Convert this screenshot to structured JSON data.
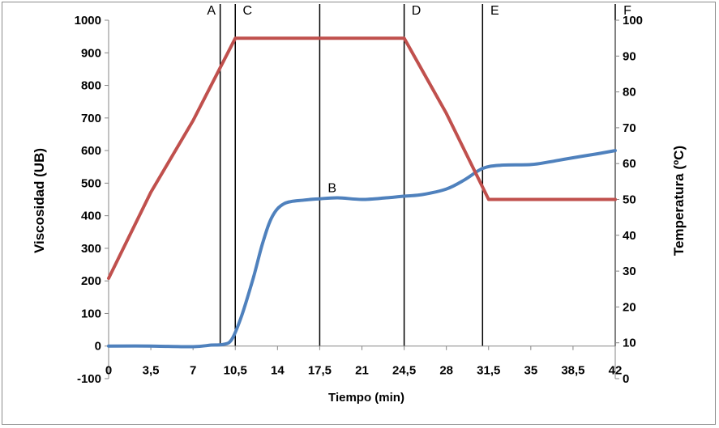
{
  "chart_data": {
    "type": "line",
    "title": "",
    "xlabel": "Tiempo (min)",
    "ylabel": "Viscosidad (UB)",
    "y2label": "Temperatura (ºC)",
    "xlim": [
      0,
      42
    ],
    "ylim": [
      -100,
      1000
    ],
    "y2lim": [
      0,
      100
    ],
    "x_ticks": [
      "0",
      "3,5",
      "7",
      "10,5",
      "14",
      "17,5",
      "21",
      "24,5",
      "28",
      "31,5",
      "35",
      "38,5",
      "42"
    ],
    "y_ticks": [
      "-100",
      "0",
      "100",
      "200",
      "300",
      "400",
      "500",
      "600",
      "700",
      "800",
      "900",
      "1000"
    ],
    "y2_ticks": [
      "0",
      "10",
      "20",
      "30",
      "40",
      "50",
      "60",
      "70",
      "80",
      "90",
      "100"
    ],
    "grid": false,
    "legend": "none",
    "series": [
      {
        "axis": "left",
        "color": "#4f81bd",
        "x": [
          0,
          3.5,
          7,
          8.5,
          9.5,
          10.2,
          11.0,
          12.0,
          12.8,
          13.6,
          14.6,
          16.2,
          17.5,
          19.0,
          21.0,
          23.0,
          24.5,
          26.0,
          28.0,
          29.5,
          31.0,
          32.5,
          35.0,
          36.5,
          38.5,
          40.5,
          42.0
        ],
        "y": [
          0,
          0,
          -2,
          3,
          5,
          20,
          90,
          210,
          320,
          400,
          438,
          448,
          452,
          455,
          450,
          455,
          460,
          465,
          482,
          510,
          545,
          555,
          557,
          565,
          578,
          590,
          600
        ]
      },
      {
        "axis": "right",
        "color": "#c0504d",
        "x": [
          0,
          3.5,
          7,
          10.5,
          24.5,
          28,
          31.5,
          42
        ],
        "y": [
          28,
          52,
          72,
          95,
          95,
          74,
          50,
          50
        ]
      }
    ],
    "vertical_markers": [
      {
        "label": "A",
        "x": 9.25
      },
      {
        "label": "C",
        "x": 10.5
      },
      {
        "label": "B",
        "x": 17.5
      },
      {
        "label": "D",
        "x": 24.5
      },
      {
        "label": "E",
        "x": 31.0
      },
      {
        "label": "F",
        "x": 42.0
      }
    ]
  }
}
